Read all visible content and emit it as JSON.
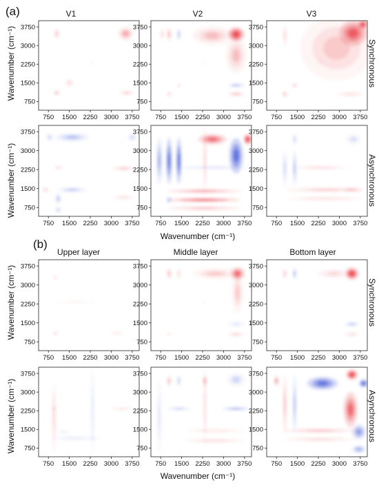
{
  "palette": {
    "positive": "#e8323c",
    "negative": "#3f57d6",
    "frame": "#222222"
  },
  "chart_data": [
    {
      "type": "heatmap",
      "panel_label": "(a)",
      "column_titles": [
        "V1",
        "V2",
        "V3"
      ],
      "row_labels": [
        "Synchronous",
        "Asynchronous"
      ],
      "xlabel": "Wavenumber (cm⁻¹)",
      "ylabel": "Wavenumber (cm⁻¹)",
      "xticks": [
        "750",
        "1500",
        "2250",
        "3000",
        "3750"
      ],
      "yticks": [
        "750",
        "1500",
        "2250",
        "3000",
        "3750"
      ],
      "xlim": [
        400,
        4000
      ],
      "ylim": [
        400,
        4000
      ],
      "panels": [
        {
          "column": "V1",
          "spectrum": "Synchronous",
          "cells": [
            {
              "x": 3520,
              "y": 3480,
              "v": 0.35,
              "sx": 260,
              "sy": 260
            },
            {
              "x": 1050,
              "y": 3480,
              "v": 0.3,
              "sx": 70,
              "sy": 200
            },
            {
              "x": 1050,
              "y": 1100,
              "v": 0.45,
              "sx": 80,
              "sy": 80
            },
            {
              "x": 3550,
              "y": 1100,
              "v": 0.3,
              "sx": 250,
              "sy": 60
            },
            {
              "x": 2330,
              "y": 2330,
              "v": 0.4,
              "sx": 25,
              "sy": 25
            },
            {
              "x": 1500,
              "y": 1500,
              "v": 0.15,
              "sx": 150,
              "sy": 150
            }
          ]
        },
        {
          "column": "V2",
          "spectrum": "Synchronous",
          "cells": [
            {
              "x": 3450,
              "y": 3450,
              "v": 1.0,
              "sx": 280,
              "sy": 280
            },
            {
              "x": 2600,
              "y": 3400,
              "v": 0.25,
              "sx": 700,
              "sy": 350
            },
            {
              "x": 3450,
              "y": 2600,
              "v": 0.25,
              "sx": 350,
              "sy": 700
            },
            {
              "x": 1050,
              "y": 3450,
              "v": 0.3,
              "sx": 80,
              "sy": 250
            },
            {
              "x": 1400,
              "y": 3450,
              "v": -0.35,
              "sx": 60,
              "sy": 220
            },
            {
              "x": 800,
              "y": 3450,
              "v": 0.2,
              "sx": 60,
              "sy": 200
            },
            {
              "x": 3450,
              "y": 1400,
              "v": -0.35,
              "sx": 300,
              "sy": 70
            },
            {
              "x": 3450,
              "y": 1050,
              "v": 0.3,
              "sx": 300,
              "sy": 70
            },
            {
              "x": 1050,
              "y": 1050,
              "v": 0.3,
              "sx": 70,
              "sy": 70
            },
            {
              "x": 1400,
              "y": 1400,
              "v": 0.25,
              "sx": 60,
              "sy": 60
            },
            {
              "x": 2330,
              "y": 2330,
              "v": 0.35,
              "sx": 25,
              "sy": 25
            }
          ]
        },
        {
          "column": "V3",
          "spectrum": "Synchronous",
          "cells": [
            {
              "x": 3500,
              "y": 3500,
              "v": 0.75,
              "sx": 500,
              "sy": 500
            },
            {
              "x": 3850,
              "y": 3850,
              "v": 0.9,
              "sx": 180,
              "sy": 180
            },
            {
              "x": 2900,
              "y": 2900,
              "v": 0.2,
              "sx": 1300,
              "sy": 1300
            },
            {
              "x": 2330,
              "y": 2330,
              "v": 0.45,
              "sx": 30,
              "sy": 30
            },
            {
              "x": 1050,
              "y": 1050,
              "v": 0.4,
              "sx": 80,
              "sy": 80
            },
            {
              "x": 1400,
              "y": 1400,
              "v": 0.4,
              "sx": 70,
              "sy": 70
            },
            {
              "x": 1050,
              "y": 3400,
              "v": 0.15,
              "sx": 60,
              "sy": 500
            },
            {
              "x": 3400,
              "y": 1050,
              "v": 0.2,
              "sx": 500,
              "sy": 60
            }
          ]
        },
        {
          "column": "V1",
          "spectrum": "Asynchronous",
          "cells": [
            {
              "x": 1600,
              "y": 3530,
              "v": -0.3,
              "sx": 600,
              "sy": 150
            },
            {
              "x": 800,
              "y": 3530,
              "v": -0.2,
              "sx": 120,
              "sy": 150
            },
            {
              "x": 3750,
              "y": 3530,
              "v": -0.2,
              "sx": 150,
              "sy": 150
            },
            {
              "x": 1600,
              "y": 1450,
              "v": -0.3,
              "sx": 500,
              "sy": 80
            },
            {
              "x": 1100,
              "y": 1100,
              "v": -0.35,
              "sx": 80,
              "sy": 200
            },
            {
              "x": 1100,
              "y": 650,
              "v": -0.25,
              "sx": 100,
              "sy": 120
            },
            {
              "x": 1100,
              "y": 2330,
              "v": 0.45,
              "sx": 120,
              "sy": 30
            },
            {
              "x": 3450,
              "y": 2300,
              "v": 0.3,
              "sx": 400,
              "sy": 60
            },
            {
              "x": 3450,
              "y": 1150,
              "v": 0.2,
              "sx": 400,
              "sy": 60
            },
            {
              "x": 650,
              "y": 1450,
              "v": 0.25,
              "sx": 100,
              "sy": 80
            }
          ]
        },
        {
          "column": "V2",
          "spectrum": "Asynchronous",
          "cells": [
            {
              "x": 1050,
              "y": 2600,
              "v": -0.85,
              "sx": 100,
              "sy": 900
            },
            {
              "x": 1400,
              "y": 2600,
              "v": -0.9,
              "sx": 90,
              "sy": 900
            },
            {
              "x": 700,
              "y": 2600,
              "v": -0.4,
              "sx": 100,
              "sy": 900
            },
            {
              "x": 3450,
              "y": 2800,
              "v": -0.85,
              "sx": 250,
              "sy": 700
            },
            {
              "x": 2600,
              "y": 3450,
              "v": 0.65,
              "sx": 500,
              "sy": 200
            },
            {
              "x": 3870,
              "y": 3450,
              "v": 0.95,
              "sx": 150,
              "sy": 200
            },
            {
              "x": 2300,
              "y": 1050,
              "v": 0.9,
              "sx": 1300,
              "sy": 60
            },
            {
              "x": 2300,
              "y": 1400,
              "v": 0.6,
              "sx": 1300,
              "sy": 50
            },
            {
              "x": 2300,
              "y": 720,
              "v": 0.4,
              "sx": 1300,
              "sy": 50
            },
            {
              "x": 2600,
              "y": 2330,
              "v": -0.3,
              "sx": 1400,
              "sy": 30
            },
            {
              "x": 2330,
              "y": 2600,
              "v": 0.35,
              "sx": 30,
              "sy": 1400
            },
            {
              "x": 1050,
              "y": 1050,
              "v": -0.4,
              "sx": 100,
              "sy": 100
            }
          ]
        },
        {
          "column": "V3",
          "spectrum": "Asynchronous",
          "cells": [
            {
              "x": 1400,
              "y": 2300,
              "v": -0.35,
              "sx": 60,
              "sy": 700
            },
            {
              "x": 1050,
              "y": 2300,
              "v": -0.25,
              "sx": 60,
              "sy": 700
            },
            {
              "x": 1400,
              "y": 3450,
              "v": -0.3,
              "sx": 60,
              "sy": 200
            },
            {
              "x": 2500,
              "y": 1450,
              "v": 0.3,
              "sx": 1400,
              "sy": 60
            },
            {
              "x": 2500,
              "y": 1100,
              "v": 0.2,
              "sx": 1400,
              "sy": 50
            },
            {
              "x": 2330,
              "y": 2330,
              "v": 0.35,
              "sx": 900,
              "sy": 30
            },
            {
              "x": 3450,
              "y": 1450,
              "v": 0.25,
              "sx": 350,
              "sy": 80
            },
            {
              "x": 3500,
              "y": 3450,
              "v": -0.15,
              "sx": 250,
              "sy": 200
            }
          ]
        }
      ]
    },
    {
      "type": "heatmap",
      "panel_label": "(b)",
      "column_titles": [
        "Upper layer",
        "Middle layer",
        "Bottom layer"
      ],
      "row_labels": [
        "Synchronous",
        "Asynchronous"
      ],
      "xlabel": "Wavenumber (cm⁻¹)",
      "ylabel": "Wavenumber (cm⁻¹)",
      "xticks": [
        "750",
        "1500",
        "2250",
        "3000",
        "3750"
      ],
      "yticks": [
        "750",
        "1500",
        "2250",
        "3000",
        "3750"
      ],
      "xlim": [
        400,
        4000
      ],
      "ylim": [
        400,
        4000
      ],
      "panels": [
        {
          "column": "Upper layer",
          "spectrum": "Synchronous",
          "cells": [
            {
              "x": 1000,
              "y": 1100,
              "v": 0.35,
              "sx": 60,
              "sy": 60
            },
            {
              "x": 1000,
              "y": 3300,
              "v": 0.2,
              "sx": 40,
              "sy": 120
            },
            {
              "x": 2330,
              "y": 2330,
              "v": 0.3,
              "sx": 25,
              "sy": 25
            },
            {
              "x": 3200,
              "y": 1100,
              "v": 0.15,
              "sx": 250,
              "sy": 40
            },
            {
              "x": 1700,
              "y": 2330,
              "v": 0.1,
              "sx": 700,
              "sy": 20
            }
          ]
        },
        {
          "column": "Middle layer",
          "spectrum": "Synchronous",
          "cells": [
            {
              "x": 3500,
              "y": 3450,
              "v": 0.7,
              "sx": 250,
              "sy": 250
            },
            {
              "x": 2700,
              "y": 3450,
              "v": 0.2,
              "sx": 800,
              "sy": 200
            },
            {
              "x": 3500,
              "y": 2700,
              "v": 0.2,
              "sx": 200,
              "sy": 800
            },
            {
              "x": 1050,
              "y": 3450,
              "v": 0.3,
              "sx": 80,
              "sy": 200
            },
            {
              "x": 1400,
              "y": 3450,
              "v": 0.2,
              "sx": 60,
              "sy": 200
            },
            {
              "x": 3450,
              "y": 1050,
              "v": 0.25,
              "sx": 300,
              "sy": 60
            },
            {
              "x": 3450,
              "y": 1450,
              "v": -0.2,
              "sx": 300,
              "sy": 60
            },
            {
              "x": 2330,
              "y": 2330,
              "v": 0.35,
              "sx": 25,
              "sy": 25
            },
            {
              "x": 1050,
              "y": 1050,
              "v": 0.2,
              "sx": 60,
              "sy": 60
            }
          ]
        },
        {
          "column": "Bottom layer",
          "spectrum": "Synchronous",
          "cells": [
            {
              "x": 3450,
              "y": 3450,
              "v": 1.0,
              "sx": 230,
              "sy": 230
            },
            {
              "x": 1400,
              "y": 3450,
              "v": -0.4,
              "sx": 60,
              "sy": 220
            },
            {
              "x": 1050,
              "y": 3450,
              "v": 0.3,
              "sx": 60,
              "sy": 180
            },
            {
              "x": 3450,
              "y": 1450,
              "v": -0.4,
              "sx": 250,
              "sy": 60
            },
            {
              "x": 3450,
              "y": 1050,
              "v": 0.2,
              "sx": 250,
              "sy": 60
            },
            {
              "x": 2800,
              "y": 3450,
              "v": 0.15,
              "sx": 600,
              "sy": 150
            }
          ]
        },
        {
          "column": "Upper layer",
          "spectrum": "Asynchronous",
          "cells": [
            {
              "x": 950,
              "y": 2000,
              "v": 0.3,
              "sx": 40,
              "sy": 1400
            },
            {
              "x": 950,
              "y": 2330,
              "v": 0.45,
              "sx": 60,
              "sy": 25
            },
            {
              "x": 2330,
              "y": 1150,
              "v": -0.45,
              "sx": 30,
              "sy": 60
            },
            {
              "x": 2330,
              "y": 2300,
              "v": -0.25,
              "sx": 20,
              "sy": 1700
            },
            {
              "x": 1700,
              "y": 1150,
              "v": -0.2,
              "sx": 900,
              "sy": 40
            },
            {
              "x": 3400,
              "y": 2330,
              "v": 0.2,
              "sx": 500,
              "sy": 20
            },
            {
              "x": 1300,
              "y": 1400,
              "v": -0.15,
              "sx": 200,
              "sy": 40
            }
          ]
        },
        {
          "column": "Middle layer",
          "spectrum": "Asynchronous",
          "cells": [
            {
              "x": 2330,
              "y": 3450,
              "v": 0.75,
              "sx": 40,
              "sy": 220
            },
            {
              "x": 2330,
              "y": 2400,
              "v": 0.3,
              "sx": 25,
              "sy": 1600
            },
            {
              "x": 3450,
              "y": 2330,
              "v": -0.7,
              "sx": 500,
              "sy": 40
            },
            {
              "x": 1400,
              "y": 2330,
              "v": -0.4,
              "sx": 400,
              "sy": 40
            },
            {
              "x": 1050,
              "y": 3450,
              "v": 0.35,
              "sx": 60,
              "sy": 220
            },
            {
              "x": 1400,
              "y": 3450,
              "v": -0.3,
              "sx": 60,
              "sy": 220
            },
            {
              "x": 2700,
              "y": 1050,
              "v": 0.3,
              "sx": 1100,
              "sy": 40
            },
            {
              "x": 2700,
              "y": 1450,
              "v": 0.2,
              "sx": 1100,
              "sy": 40
            },
            {
              "x": 3450,
              "y": 3500,
              "v": -0.2,
              "sx": 300,
              "sy": 250
            },
            {
              "x": 700,
              "y": 2000,
              "v": -0.2,
              "sx": 50,
              "sy": 1400
            }
          ]
        },
        {
          "column": "Bottom layer",
          "spectrum": "Asynchronous",
          "cells": [
            {
              "x": 2400,
              "y": 3350,
              "v": -0.8,
              "sx": 550,
              "sy": 260
            },
            {
              "x": 3450,
              "y": 3700,
              "v": 1.0,
              "sx": 200,
              "sy": 200
            },
            {
              "x": 3870,
              "y": 3350,
              "v": -0.95,
              "sx": 160,
              "sy": 160
            },
            {
              "x": 3400,
              "y": 2300,
              "v": 0.7,
              "sx": 250,
              "sy": 700
            },
            {
              "x": 3700,
              "y": 1400,
              "v": -0.5,
              "sx": 250,
              "sy": 300
            },
            {
              "x": 3700,
              "y": 700,
              "v": -0.4,
              "sx": 250,
              "sy": 150
            },
            {
              "x": 1400,
              "y": 2500,
              "v": -0.35,
              "sx": 60,
              "sy": 1200
            },
            {
              "x": 1050,
              "y": 2500,
              "v": 0.3,
              "sx": 60,
              "sy": 1200
            },
            {
              "x": 750,
              "y": 3450,
              "v": 0.45,
              "sx": 80,
              "sy": 200
            },
            {
              "x": 2300,
              "y": 1450,
              "v": 0.35,
              "sx": 1300,
              "sy": 60
            },
            {
              "x": 2300,
              "y": 1100,
              "v": 0.25,
              "sx": 1300,
              "sy": 50
            }
          ]
        }
      ]
    }
  ]
}
